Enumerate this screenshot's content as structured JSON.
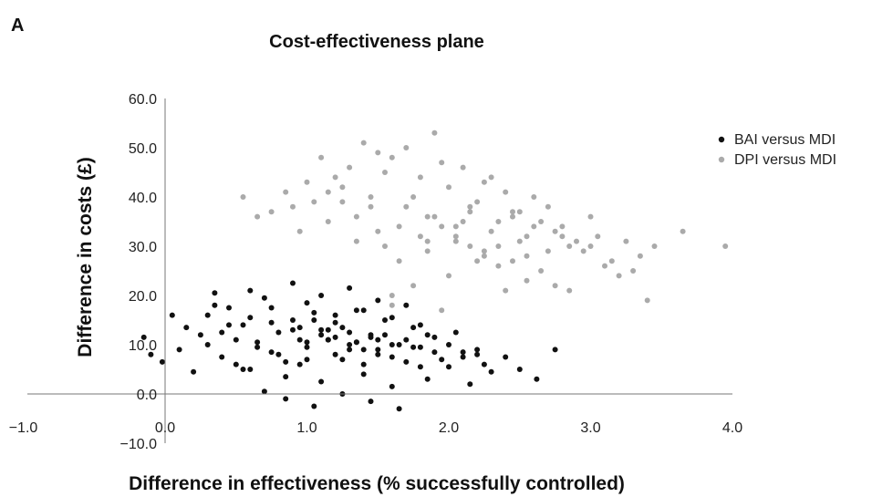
{
  "panel_label": "A",
  "chart_data": {
    "type": "scatter",
    "title": "Cost-effectiveness plane",
    "xlabel": "Difference in effectiveness (% successfully controlled)",
    "ylabel": "Difference in costs (£)",
    "xlim": [
      -1.0,
      4.0
    ],
    "ylim": [
      -10.0,
      60.0
    ],
    "x_ticks": [
      "−1.0",
      "0.0",
      "1.0",
      "2.0",
      "3.0",
      "4.0"
    ],
    "y_ticks": [
      "−10.0",
      "0.0",
      "10.0",
      "20.0",
      "30.0",
      "40.0",
      "50.0",
      "60.0"
    ],
    "legend_position": "right",
    "series": [
      {
        "name": "BAI versus MDI",
        "color": "#111111",
        "x": [
          -0.15,
          -0.1,
          -0.02,
          0.05,
          0.1,
          0.15,
          0.2,
          0.25,
          0.3,
          0.35,
          0.4,
          0.45,
          0.5,
          0.55,
          0.6,
          0.65,
          0.7,
          0.75,
          0.8,
          0.85,
          0.9,
          0.95,
          1.0,
          1.05,
          1.1,
          1.15,
          1.2,
          1.25,
          1.3,
          1.35,
          1.4,
          1.45,
          1.5,
          1.55,
          1.6,
          1.65,
          1.7,
          1.75,
          1.8,
          1.85,
          1.9,
          1.95,
          2.0,
          2.05,
          2.1,
          2.15,
          2.2,
          2.25,
          2.3,
          2.4,
          2.5,
          2.62,
          2.75,
          0.35,
          0.6,
          0.75,
          0.9,
          1.0,
          1.1,
          1.2,
          1.3,
          1.4,
          1.5,
          1.6,
          1.7,
          1.8,
          0.7,
          0.85,
          1.05,
          1.25,
          1.45,
          1.65,
          0.95,
          1.15,
          1.35,
          1.55,
          0.8,
          1.0,
          1.2,
          1.4,
          1.6,
          0.5,
          0.65,
          1.1,
          1.3,
          1.5,
          1.7,
          1.9,
          2.1,
          0.4,
          0.55,
          0.95,
          1.15,
          1.35,
          1.75,
          2.0,
          2.2,
          0.3,
          0.45,
          1.05,
          1.25,
          1.45,
          1.85,
          0.6,
          0.85,
          1.0,
          1.2,
          1.4,
          1.6,
          1.8,
          0.75,
          0.9,
          1.1,
          1.3,
          1.5
        ],
        "y": [
          11.5,
          8.0,
          6.5,
          16.0,
          9.0,
          13.5,
          4.5,
          12.0,
          10.0,
          18.0,
          7.5,
          14.0,
          11.0,
          5.0,
          15.5,
          9.5,
          19.5,
          8.5,
          12.5,
          3.5,
          13.0,
          6.0,
          10.5,
          16.5,
          2.5,
          11.0,
          14.5,
          7.0,
          9.0,
          17.0,
          4.0,
          12.0,
          8.0,
          15.0,
          1.5,
          10.0,
          6.5,
          13.5,
          9.5,
          3.0,
          11.5,
          7.0,
          5.5,
          12.5,
          8.5,
          2.0,
          9.0,
          6.0,
          4.5,
          7.5,
          5.0,
          3.0,
          9.0,
          20.5,
          21.0,
          17.5,
          22.5,
          18.5,
          20.0,
          16.0,
          21.5,
          17.0,
          19.0,
          15.5,
          18.0,
          14.0,
          0.5,
          -1.0,
          -2.5,
          0.0,
          -1.5,
          -3.0,
          11.0,
          13.0,
          10.5,
          12.0,
          8.0,
          9.5,
          11.5,
          9.0,
          10.0,
          6.0,
          10.5,
          12.0,
          10.0,
          9.0,
          11.0,
          8.5,
          7.5,
          12.5,
          14.0,
          13.5,
          11.0,
          10.5,
          9.5,
          10.0,
          8.0,
          16.0,
          17.5,
          15.0,
          13.5,
          11.5,
          12.0,
          5.0,
          6.5,
          7.0,
          8.0,
          6.0,
          7.5,
          5.5,
          14.5,
          15.0,
          13.0,
          12.5,
          11.0
        ]
      },
      {
        "name": "DPI versus MDI",
        "color": "#aaaaaa",
        "x": [
          0.75,
          0.85,
          0.95,
          1.05,
          1.15,
          1.25,
          1.35,
          1.45,
          1.55,
          1.65,
          1.75,
          1.85,
          1.95,
          2.05,
          2.15,
          2.25,
          2.35,
          2.45,
          2.55,
          2.65,
          2.75,
          2.85,
          2.95,
          3.05,
          3.15,
          3.25,
          3.35,
          3.45,
          3.65,
          3.95,
          0.55,
          0.65,
          1.6,
          1.7,
          1.8,
          1.9,
          2.0,
          2.1,
          2.2,
          2.3,
          2.4,
          2.5,
          2.6,
          1.4,
          1.5,
          2.7,
          2.8,
          2.9,
          3.0,
          3.1,
          1.3,
          1.95,
          2.05,
          2.15,
          2.25,
          2.35,
          1.85,
          2.45,
          1.2,
          1.1,
          2.55,
          2.65,
          1.0,
          2.75,
          0.9,
          2.85,
          1.6,
          1.75,
          2.0,
          2.2,
          2.4,
          1.55,
          1.65,
          1.8,
          2.1,
          2.3,
          2.5,
          2.7,
          3.2,
          3.4,
          1.35,
          1.45,
          1.7,
          1.9,
          2.05,
          2.15,
          2.35,
          2.55,
          1.25,
          1.15,
          2.6,
          2.8,
          3.0,
          3.3,
          1.5,
          1.85,
          2.25,
          2.45,
          1.6,
          1.95
        ],
        "y": [
          37.0,
          41.0,
          33.0,
          39.0,
          35.0,
          42.0,
          31.0,
          38.0,
          45.0,
          34.0,
          40.0,
          36.0,
          47.0,
          32.0,
          38.0,
          43.0,
          30.0,
          37.0,
          28.0,
          35.0,
          33.0,
          30.0,
          29.0,
          32.0,
          27.0,
          31.0,
          28.0,
          30.0,
          33.0,
          30.0,
          40.0,
          36.0,
          48.0,
          50.0,
          44.0,
          53.0,
          42.0,
          46.0,
          39.0,
          44.0,
          41.0,
          37.0,
          40.0,
          51.0,
          49.0,
          38.0,
          34.0,
          31.0,
          36.0,
          26.0,
          46.0,
          34.0,
          31.0,
          30.0,
          28.0,
          26.0,
          29.0,
          27.0,
          44.0,
          48.0,
          23.0,
          25.0,
          43.0,
          22.0,
          38.0,
          21.0,
          20.0,
          22.0,
          24.0,
          27.0,
          21.0,
          30.0,
          27.0,
          32.0,
          35.0,
          33.0,
          31.0,
          29.0,
          24.0,
          19.0,
          36.0,
          40.0,
          38.0,
          36.0,
          34.0,
          37.0,
          35.0,
          32.0,
          39.0,
          41.0,
          34.0,
          32.0,
          30.0,
          25.0,
          33.0,
          31.0,
          29.0,
          36.0,
          18.0,
          17.0
        ]
      }
    ]
  }
}
